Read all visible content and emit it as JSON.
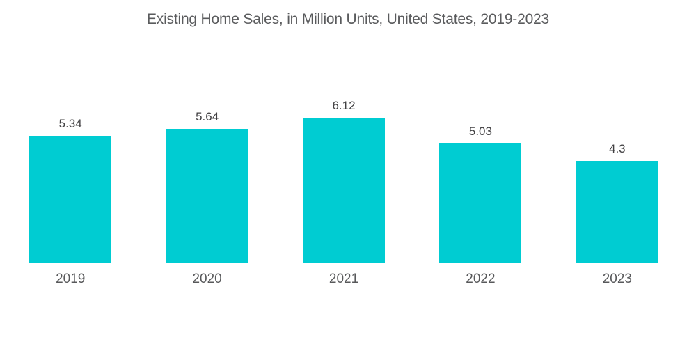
{
  "page": {
    "background_color": "#FFFFFF"
  },
  "colors": {
    "bar_fill": "#00CCD2",
    "title_text": "#5A5B5D",
    "value_label_text": "#414042",
    "year_label_text": "#58595B"
  },
  "chart_data": {
    "type": "bar",
    "title": "Existing Home Sales, in Million Units, United States, 2019-2023",
    "categories": [
      "2019",
      "2020",
      "2021",
      "2022",
      "2023"
    ],
    "values": [
      5.34,
      5.64,
      6.12,
      5.03,
      4.3
    ],
    "value_labels": [
      "5.34",
      "5.64",
      "6.12",
      "5.03",
      "4.3"
    ],
    "series_name": "Existing Home Sales (Million Units)",
    "xlabel": "",
    "ylabel": "",
    "ylim": [
      0,
      7
    ],
    "grid": false,
    "axes_visible": false,
    "legend_position": "none",
    "data_labels": "above-bars"
  }
}
